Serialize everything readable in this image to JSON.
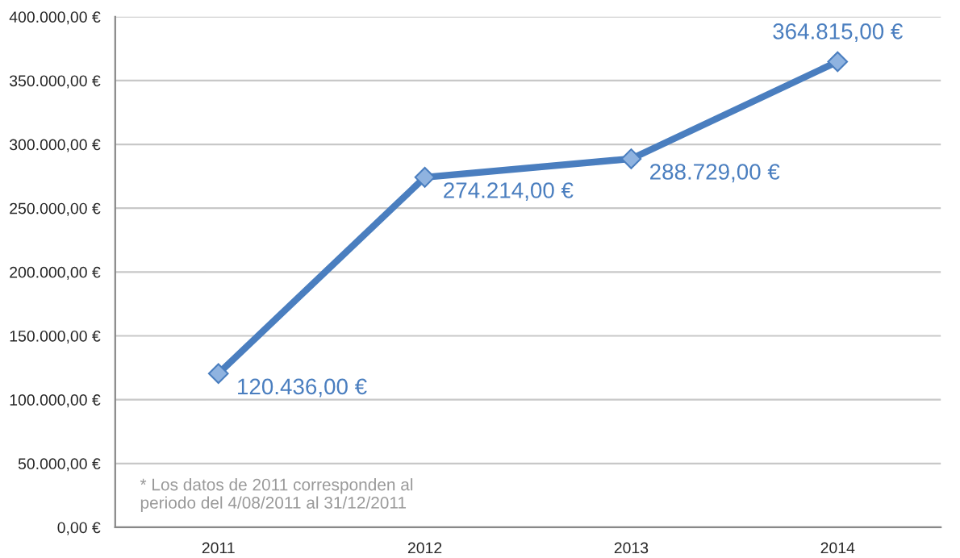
{
  "chart_data": {
    "type": "line",
    "categories": [
      "2011",
      "2012",
      "2013",
      "2014"
    ],
    "series": [
      {
        "color": "#4a7ebf",
        "values": [
          120436,
          274214,
          288729,
          364815
        ],
        "value_labels": [
          "120.436,00 €",
          "274.214,00 €",
          "288.729,00 €",
          "364.815,00 €"
        ]
      }
    ],
    "ylim": [
      0,
      400000
    ],
    "yticks": [
      {
        "value": 0,
        "label": "0,00 €"
      },
      {
        "value": 50000,
        "label": "50.000,00 €"
      },
      {
        "value": 100000,
        "label": "100.000,00 €"
      },
      {
        "value": 150000,
        "label": "150.000,00 €"
      },
      {
        "value": 200000,
        "label": "200.000,00 €"
      },
      {
        "value": 250000,
        "label": "250.000,00 €"
      },
      {
        "value": 300000,
        "label": "300.000,00 €"
      },
      {
        "value": 350000,
        "label": "350.000,00 €"
      },
      {
        "value": 400000,
        "label": "400.000,00 €"
      }
    ],
    "grid": "y",
    "marker": "diamond",
    "line_style": "solid",
    "legend": false,
    "annotations": [
      "* Los datos de 2011 corresponden al\nperiodo del 4/08/2011 al 31/12/2011"
    ]
  }
}
